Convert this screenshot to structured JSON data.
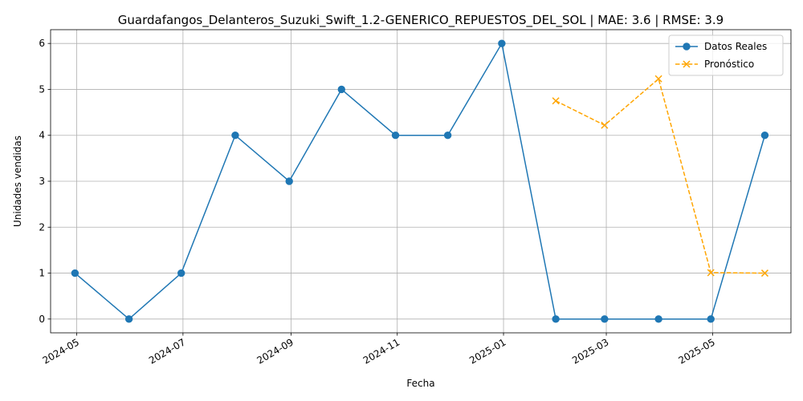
{
  "chart_data": {
    "type": "line",
    "title": "Guardafangos_Delanteros_Suzuki_Swift_1.2-GENERICO_REPUESTOS_DEL_SOL | MAE: 3.6 | RMSE: 3.9",
    "xlabel": "Fecha",
    "ylabel": "Unidades vendidas",
    "ylim": [
      -0.3,
      6.3
    ],
    "yticks": [
      0,
      1,
      2,
      3,
      4,
      5,
      6
    ],
    "xlim": [
      "2024-04-16",
      "2025-06-15"
    ],
    "xticks": [
      "2024-05",
      "2024-07",
      "2024-09",
      "2024-11",
      "2025-01",
      "2025-03",
      "2025-05"
    ],
    "grid": true,
    "legend": "top-right",
    "series": [
      {
        "name": "Datos Reales",
        "color": "#1f77b4",
        "style": "solid",
        "marker": "circle",
        "x": [
          "2024-04-30",
          "2024-05-31",
          "2024-06-30",
          "2024-07-31",
          "2024-08-31",
          "2024-09-30",
          "2024-10-31",
          "2024-11-30",
          "2024-12-31",
          "2025-01-31",
          "2025-02-28",
          "2025-03-31",
          "2025-04-30",
          "2025-05-31"
        ],
        "y": [
          1,
          0,
          1,
          4,
          3,
          5,
          4,
          4,
          6,
          0,
          0,
          0,
          0,
          4
        ]
      },
      {
        "name": "Pronóstico",
        "color": "#ffa500",
        "style": "dashed",
        "marker": "x",
        "x": [
          "2025-01-31",
          "2025-02-28",
          "2025-03-31",
          "2025-04-30",
          "2025-05-31"
        ],
        "y": [
          4.75,
          4.22,
          5.23,
          1.01,
          1.0
        ]
      }
    ]
  }
}
